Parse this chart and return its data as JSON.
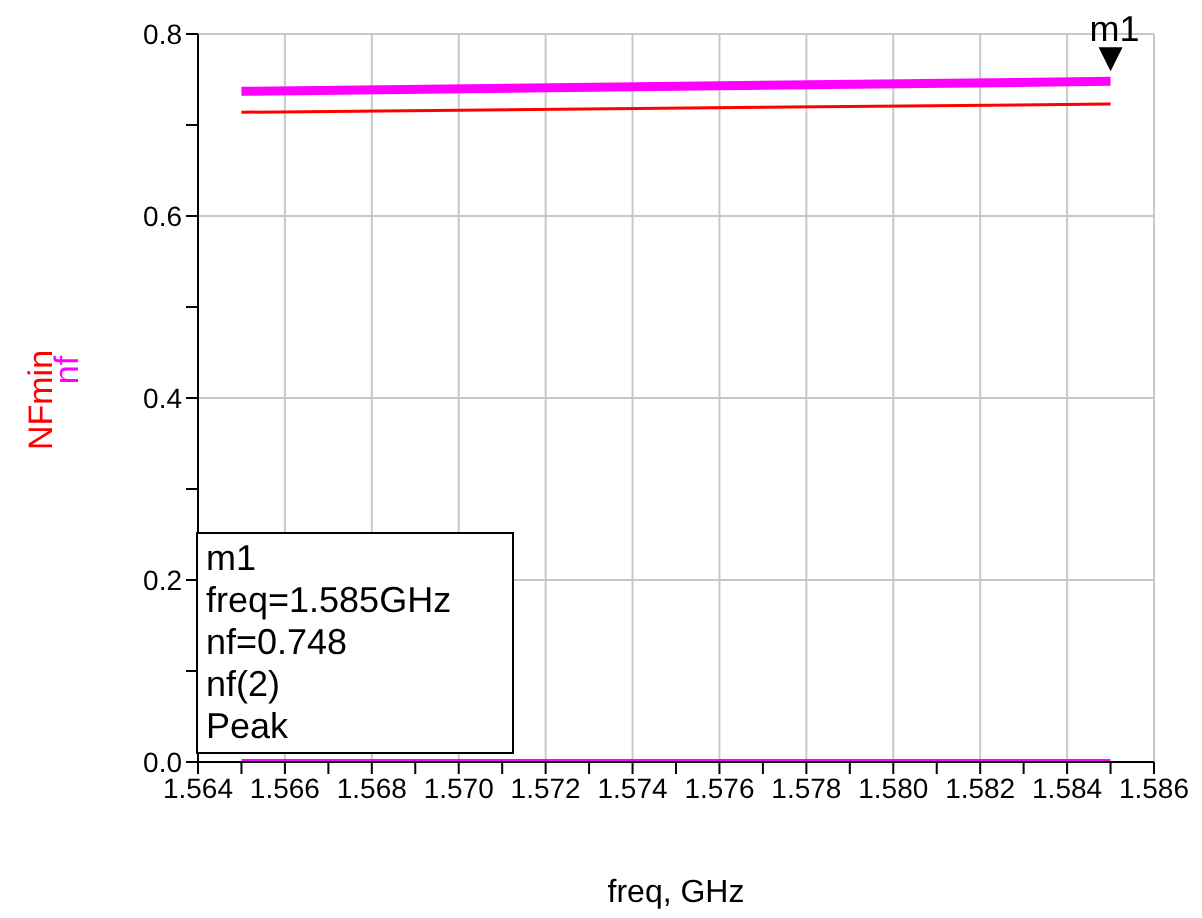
{
  "chart_data": {
    "type": "line",
    "xlabel": "freq, GHz",
    "xlim": [
      1.564,
      1.586
    ],
    "xticks": [
      1.564,
      {
        "value": 1.565,
        "label": null
      },
      1.566,
      {
        "value": 1.567,
        "label": null
      },
      1.568,
      {
        "value": 1.569,
        "label": null
      },
      "1.570",
      {
        "value": 1.571,
        "label": null
      },
      1.572,
      {
        "value": 1.573,
        "label": null
      },
      1.574,
      {
        "value": 1.575,
        "label": null
      },
      1.576,
      {
        "value": 1.577,
        "label": null
      },
      1.578,
      {
        "value": 1.579,
        "label": null
      },
      "1.580",
      {
        "value": 1.581,
        "label": null
      },
      1.582,
      {
        "value": 1.583,
        "label": null
      },
      1.584,
      {
        "value": 1.585,
        "label": null
      },
      1.586
    ],
    "ylim": [
      0,
      0.8
    ],
    "yticks": [
      "0.0",
      {
        "value": 0.1,
        "label": null
      },
      0.2,
      {
        "value": 0.3,
        "label": null
      },
      0.4,
      {
        "value": 0.5,
        "label": null
      },
      0.6,
      {
        "value": 0.7,
        "label": null
      },
      0.8
    ],
    "grid": true,
    "legend": "left",
    "marker": "none",
    "line_style": "solid",
    "x": [
      1.565,
      1.585
    ],
    "series": [
      {
        "name": "NFmin",
        "color": "#ff0000",
        "values": [
          0.714,
          0.723
        ]
      },
      {
        "name": "nf",
        "color": "#ff00ff",
        "values": [
          0.737,
          0.748
        ]
      },
      {
        "color": "#ff00ff",
        "values": [
          0,
          0
        ]
      }
    ],
    "annotations": [
      {
        "text": "m1",
        "x": 1.585,
        "y": 0.748
      },
      "m1\nfreq=1.585GHz\nnf=0.748\nnf(2)\nPeak"
    ]
  }
}
